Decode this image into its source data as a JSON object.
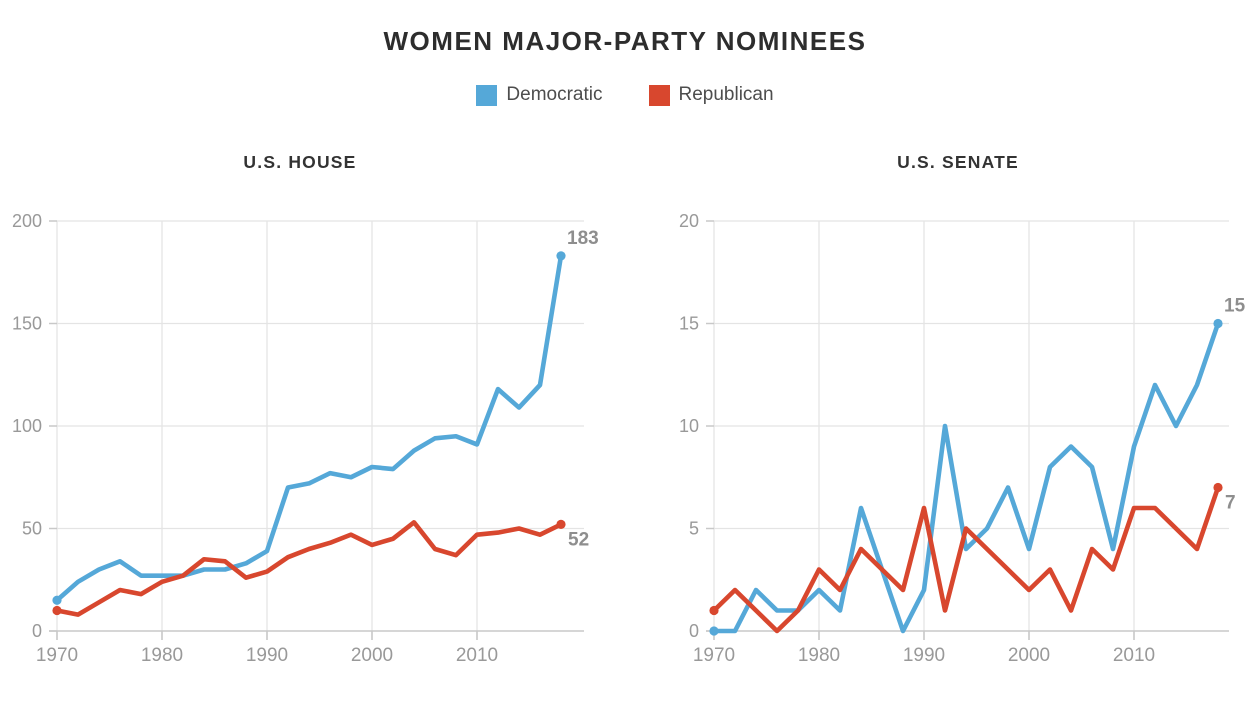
{
  "title": "WOMEN MAJOR-PARTY NOMINEES",
  "colors": {
    "democratic": "#55a8d8",
    "republican": "#d8472e",
    "axis_text": "#999999",
    "end_label_text": "#8e8e8e",
    "gridline": "#e4e4e4",
    "axis_line": "#c8c8c8",
    "title_text": "#2d2d2d",
    "chart_title_text": "#333333",
    "legend_text": "#4d4d4d",
    "background": "#ffffff"
  },
  "legend": {
    "items": [
      {
        "label": "Democratic",
        "color": "#55a8d8"
      },
      {
        "label": "Republican",
        "color": "#d8472e"
      }
    ]
  },
  "chart_data": [
    {
      "type": "line",
      "title": "U.S. HOUSE",
      "x": [
        1970,
        1972,
        1974,
        1976,
        1978,
        1980,
        1982,
        1984,
        1986,
        1988,
        1990,
        1992,
        1994,
        1996,
        1998,
        2000,
        2002,
        2004,
        2006,
        2008,
        2010,
        2012,
        2014,
        2016,
        2018
      ],
      "xticks": [
        1970,
        1980,
        1990,
        2000,
        2010
      ],
      "yticks": [
        0,
        50,
        100,
        150,
        200
      ],
      "xlim": [
        1970,
        2018
      ],
      "ylim": [
        0,
        200
      ],
      "grid": true,
      "legend_position": "top",
      "series": [
        {
          "name": "Democratic",
          "color": "#55a8d8",
          "values": [
            15,
            24,
            30,
            34,
            27,
            27,
            27,
            30,
            30,
            33,
            39,
            70,
            72,
            77,
            75,
            80,
            79,
            88,
            94,
            95,
            91,
            118,
            109,
            120,
            183
          ],
          "end_label": "183"
        },
        {
          "name": "Republican",
          "color": "#d8472e",
          "values": [
            10,
            8,
            14,
            20,
            18,
            24,
            27,
            35,
            34,
            26,
            29,
            36,
            40,
            43,
            47,
            42,
            45,
            53,
            40,
            37,
            47,
            48,
            50,
            47,
            52
          ],
          "end_label": "52"
        }
      ]
    },
    {
      "type": "line",
      "title": "U.S. SENATE",
      "x": [
        1970,
        1972,
        1974,
        1976,
        1978,
        1980,
        1982,
        1984,
        1986,
        1988,
        1990,
        1992,
        1994,
        1996,
        1998,
        2000,
        2002,
        2004,
        2006,
        2008,
        2010,
        2012,
        2014,
        2016,
        2018
      ],
      "xticks": [
        1970,
        1980,
        1990,
        2000,
        2010
      ],
      "yticks": [
        0,
        5,
        10,
        15,
        20
      ],
      "xlim": [
        1970,
        2018
      ],
      "ylim": [
        0,
        20
      ],
      "grid": true,
      "legend_position": "top",
      "series": [
        {
          "name": "Democratic",
          "color": "#55a8d8",
          "values": [
            0,
            0,
            2,
            1,
            1,
            2,
            1,
            6,
            3,
            0,
            2,
            10,
            4,
            5,
            7,
            4,
            8,
            9,
            8,
            4,
            9,
            12,
            10,
            12,
            15
          ],
          "end_label": "15"
        },
        {
          "name": "Republican",
          "color": "#d8472e",
          "values": [
            1,
            2,
            1,
            0,
            1,
            3,
            2,
            4,
            3,
            2,
            6,
            1,
            5,
            4,
            3,
            2,
            3,
            1,
            4,
            3,
            6,
            6,
            5,
            4,
            7
          ],
          "end_label": "7"
        }
      ]
    }
  ]
}
